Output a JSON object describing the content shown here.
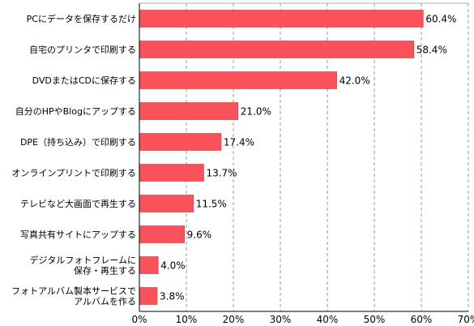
{
  "chart_data": {
    "type": "bar",
    "orientation": "horizontal",
    "categories": [
      [
        "PCにデータを保存するだけ"
      ],
      [
        "自宅のプリンタで印刷する"
      ],
      [
        "DVDまたはCDに保存する"
      ],
      [
        "自分のHPやBlogにアップする"
      ],
      [
        "DPE（持ち込み）で印刷する"
      ],
      [
        "オンラインプリントで印刷する"
      ],
      [
        "テレビなど大画面で再生する"
      ],
      [
        "写真共有サイトにアップする"
      ],
      [
        "デジタルフォトフレームに",
        "保存・再生する"
      ],
      [
        "フォトアルバム製本サービスで",
        "アルバムを作る"
      ]
    ],
    "values": [
      60.4,
      58.4,
      42.0,
      21.0,
      17.4,
      13.7,
      11.5,
      9.6,
      4.0,
      3.8
    ],
    "value_labels": [
      "60.4%",
      "58.4%",
      "42.0%",
      "21.0%",
      "17.4%",
      "13.7%",
      "11.5%",
      "9.6%",
      "4.0%",
      "3.8%"
    ],
    "x_ticks": [
      "0%",
      "10%",
      "20%",
      "30%",
      "40%",
      "50%",
      "60%",
      "70%"
    ],
    "xlim": [
      0,
      70
    ],
    "grid": "vertical dashed",
    "colors": {
      "bar": "#f9525a",
      "bar_stroke": "#c83a40",
      "axis": "#000000",
      "grid": "#999999"
    }
  }
}
